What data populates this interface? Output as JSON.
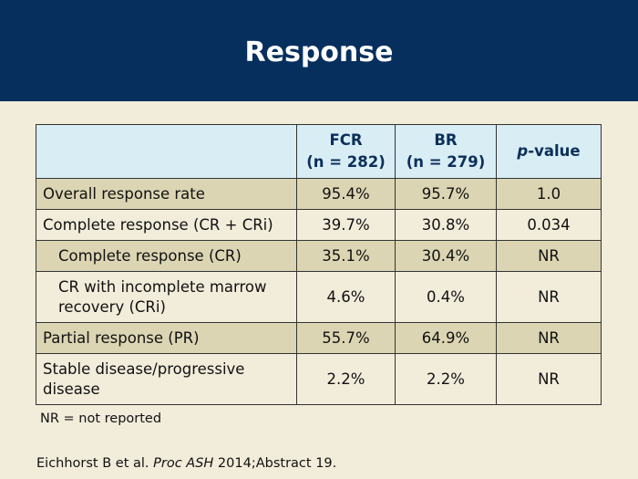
{
  "slide": {
    "title": "Response"
  },
  "table": {
    "headers": {
      "col1": "",
      "fcr_name": "FCR",
      "fcr_n": "(n = 282)",
      "br_name": "BR",
      "br_n": "(n = 279)",
      "pvalue_italic": "p",
      "pvalue_rest": "-value"
    },
    "rows": [
      {
        "label": "Overall response rate",
        "fcr": "95.4%",
        "br": "95.7%",
        "p": "1.0"
      },
      {
        "label": "Complete response (CR + CRi)",
        "fcr": "39.7%",
        "br": "30.8%",
        "p": "0.034"
      },
      {
        "label": "Complete response (CR)",
        "fcr": "35.1%",
        "br": "30.4%",
        "p": "NR"
      },
      {
        "label": "CR with incomplete marrow recovery (CRi)",
        "fcr": "4.6%",
        "br": "0.4%",
        "p": "NR"
      },
      {
        "label": "Partial response (PR)",
        "fcr": "55.7%",
        "br": "64.9%",
        "p": "NR"
      },
      {
        "label": "Stable disease/progressive disease",
        "fcr": "2.2%",
        "br": "2.2%",
        "p": "NR"
      }
    ]
  },
  "footnote": "NR = not reported",
  "citation": {
    "authors": "Eichhorst B et al. ",
    "journal": "Proc ASH",
    "rest": " 2014;Abstract 19."
  },
  "colors": {
    "header_band": "#062f5d",
    "slide_background": "#f2ecda",
    "table_header": "#d9edf5",
    "row_shade": "#dcd5b3"
  }
}
